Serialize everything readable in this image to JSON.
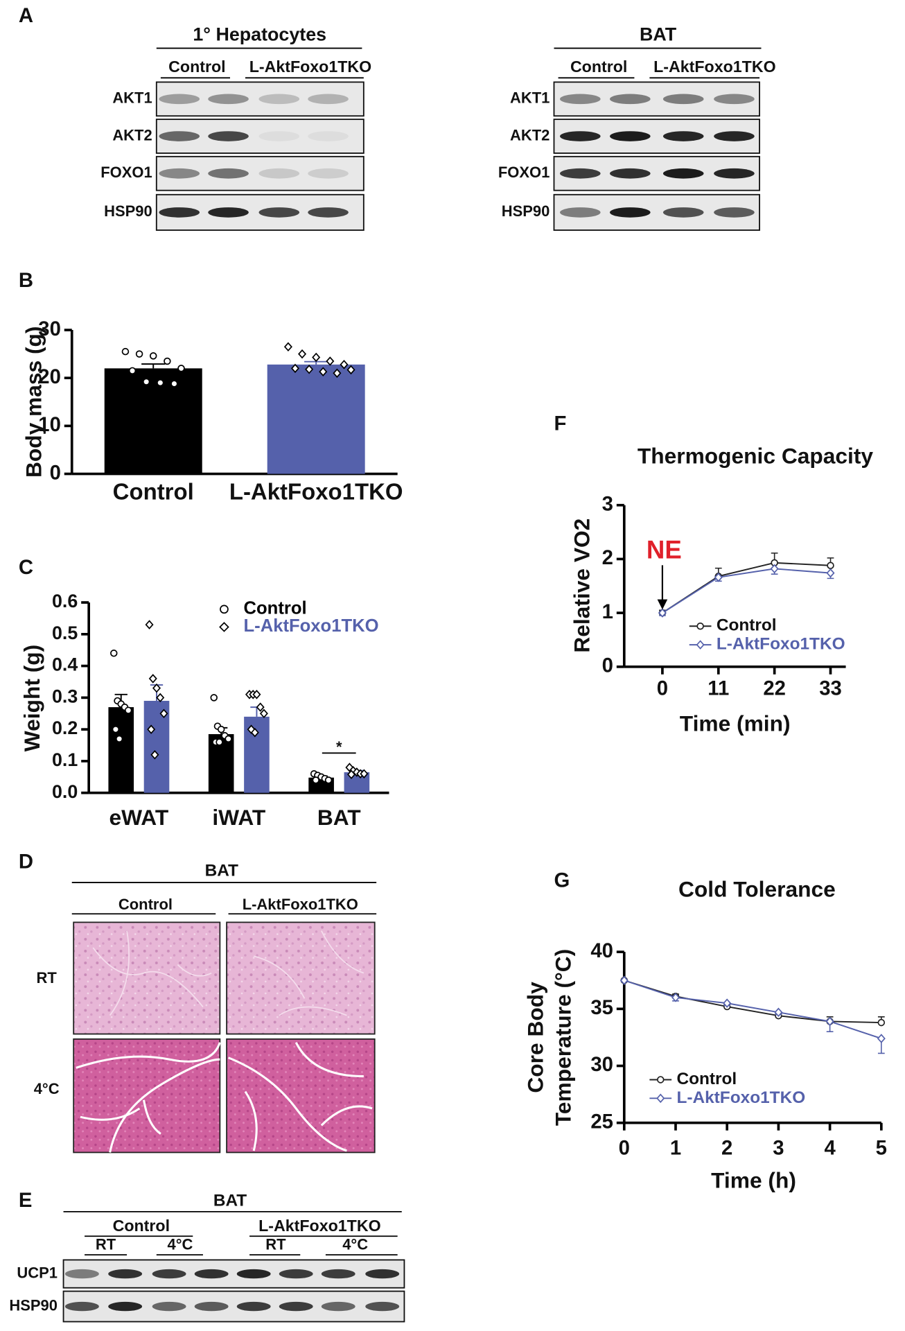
{
  "panel_labels": [
    "A",
    "B",
    "C",
    "D",
    "E",
    "F",
    "G"
  ],
  "blots": [
    {
      "title": "1° Hepatocytes",
      "groups": [
        "Control",
        "L-AktFoxo1TKO"
      ],
      "rows": [
        "AKT1",
        "AKT2",
        "FOXO1",
        "HSP90"
      ]
    },
    {
      "title": "BAT",
      "groups": [
        "Control",
        "L-AktFoxo1TKO"
      ],
      "rows": [
        "AKT1",
        "AKT2",
        "FOXO1",
        "HSP90"
      ]
    }
  ],
  "histology": {
    "title": "BAT",
    "columns": [
      "Control",
      "L-AktFoxo1TKO"
    ],
    "rows": [
      "RT",
      "4°C"
    ]
  },
  "ucp1_blot": {
    "title": "BAT",
    "groups": [
      "Control",
      "L-AktFoxo1TKO"
    ],
    "conditions": [
      "RT",
      "4°C",
      "RT",
      "4°C"
    ],
    "rows": [
      "UCP1",
      "HSP90"
    ]
  },
  "chart_data": [
    {
      "type": "bar",
      "ylabel": "Body mass (g)",
      "categories": [
        "Control",
        "L-AktFoxo1TKO"
      ],
      "values": [
        22,
        22.8
      ],
      "errors": [
        0.9,
        0.6
      ],
      "colors": [
        "#000000",
        "#5561ab"
      ],
      "points": [
        [
          25.5,
          25,
          24.6,
          23.5,
          22,
          21.5,
          19.2,
          19,
          18.8
        ],
        [
          26.5,
          25,
          24.3,
          23.5,
          22.8,
          22,
          21.8,
          21.3,
          21,
          21.7
        ]
      ],
      "ylim": [
        0,
        30
      ],
      "yticks": [
        0,
        10,
        20,
        30
      ]
    },
    {
      "type": "grouped_bar",
      "ylabel": "Weight  (g)",
      "categories": [
        "eWAT",
        "iWAT",
        "BAT"
      ],
      "series": [
        {
          "name": "Control",
          "color": "#000000",
          "values": [
            0.27,
            0.185,
            0.048
          ],
          "errors": [
            0.04,
            0.02,
            0.005
          ],
          "points": [
            [
              0.44,
              0.29,
              0.28,
              0.27,
              0.26,
              0.2,
              0.17
            ],
            [
              0.3,
              0.21,
              0.2,
              0.18,
              0.17,
              0.16,
              0.16
            ],
            [
              0.06,
              0.055,
              0.05,
              0.045,
              0.04,
              0.04
            ]
          ]
        },
        {
          "name": "L-AktFoxo1TKO",
          "color": "#5561ab",
          "values": [
            0.29,
            0.24,
            0.065
          ],
          "errors": [
            0.05,
            0.03,
            0.005
          ],
          "points": [
            [
              0.53,
              0.36,
              0.33,
              0.3,
              0.25,
              0.2,
              0.12
            ],
            [
              0.31,
              0.31,
              0.31,
              0.27,
              0.25,
              0.2,
              0.19
            ],
            [
              0.08,
              0.07,
              0.065,
              0.06,
              0.06,
              0.058
            ]
          ]
        }
      ],
      "annotation": "*",
      "ylim": [
        0,
        0.6
      ],
      "yticks": [
        {
          "value": 0,
          "label": "0.0"
        },
        0.1,
        0.2,
        0.3,
        0.4,
        0.5,
        0.6
      ]
    },
    {
      "type": "line",
      "title": "Thermogenic Capacity",
      "ylabel": "Relative VO2",
      "xlabel": "Time (min)",
      "x": [
        0,
        11,
        22,
        33
      ],
      "series": [
        {
          "name": "Control",
          "color": "#222222",
          "values": [
            1.0,
            1.68,
            1.93,
            1.88
          ],
          "errors": [
            0.05,
            0.15,
            0.18,
            0.14
          ]
        },
        {
          "name": "L-AktFoxo1TKO",
          "color": "#5561ab",
          "values": [
            1.0,
            1.66,
            1.82,
            1.74
          ],
          "errors": [
            0.05,
            0.07,
            0.1,
            0.1
          ]
        }
      ],
      "annotation": "NE",
      "annotation_color": "#e0202a",
      "xlim": [
        -7.5,
        36
      ],
      "xticks": [
        0,
        11,
        22,
        33
      ],
      "ylim": [
        0,
        3
      ],
      "yticks": [
        0,
        1,
        2,
        3
      ]
    },
    {
      "type": "line",
      "title": "Cold Tolerance",
      "ylabel": [
        "Core Body",
        "Temperature (°C)"
      ],
      "xlabel": "Time (h)",
      "x": [
        0,
        1,
        2,
        3,
        4,
        5
      ],
      "series": [
        {
          "name": "Control",
          "color": "#222222",
          "values": [
            37.5,
            36.1,
            35.2,
            34.4,
            33.9,
            33.8
          ],
          "errors": [
            0.1,
            0.2,
            0.2,
            0.2,
            0.4,
            0.5
          ]
        },
        {
          "name": "L-AktFoxo1TKO",
          "color": "#5561ab",
          "values": [
            37.5,
            36.0,
            35.5,
            34.7,
            33.9,
            32.4
          ],
          "errors": [
            0.1,
            0.3,
            0.2,
            0.2,
            0.9,
            1.3
          ]
        }
      ],
      "xlim": [
        0,
        5
      ],
      "xticks": [
        0,
        1,
        2,
        3,
        4,
        5
      ],
      "ylim": [
        25,
        40
      ],
      "yticks": [
        25,
        30,
        35,
        40
      ]
    }
  ]
}
